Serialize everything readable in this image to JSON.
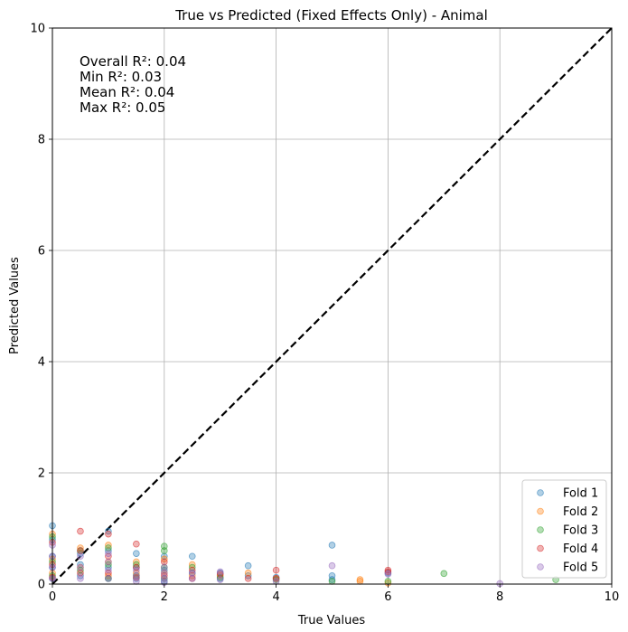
{
  "chart_data": {
    "type": "scatter",
    "title": "True vs Predicted (Fixed Effects Only) - Animal",
    "xlabel": "True Values",
    "ylabel": "Predicted Values",
    "xlim": [
      0,
      10
    ],
    "ylim": [
      0,
      10
    ],
    "xticks": [
      "0",
      "2",
      "4",
      "6",
      "8",
      "10"
    ],
    "yticks": [
      "0",
      "2",
      "4",
      "6",
      "8",
      "10"
    ],
    "grid": true,
    "legend_position": "bottom-right",
    "reference_line": {
      "x": [
        0,
        10
      ],
      "y": [
        0,
        10
      ],
      "style": "dashed",
      "color": "#000000"
    },
    "stats_lines": [
      "Overall R²: 0.04",
      "Min R²: 0.03",
      "Mean R²: 0.04",
      "Max R²: 0.05"
    ],
    "series": [
      {
        "name": "Fold 1",
        "color": "#1f77b4",
        "points": [
          [
            0,
            1.05
          ],
          [
            0,
            0.8
          ],
          [
            0,
            0.5
          ],
          [
            0,
            0.3
          ],
          [
            0,
            0.1
          ],
          [
            0.5,
            0.55
          ],
          [
            0.5,
            0.35
          ],
          [
            0.5,
            0.15
          ],
          [
            1,
            0.95
          ],
          [
            1,
            0.6
          ],
          [
            1,
            0.3
          ],
          [
            1,
            0.1
          ],
          [
            1.5,
            0.55
          ],
          [
            1.5,
            0.3
          ],
          [
            1.5,
            0.1
          ],
          [
            2,
            0.5
          ],
          [
            2,
            0.25
          ],
          [
            2,
            0.05
          ],
          [
            2.5,
            0.5
          ],
          [
            2.5,
            0.2
          ],
          [
            3,
            0.2
          ],
          [
            3,
            0.1
          ],
          [
            3.5,
            0.33
          ],
          [
            3.5,
            0.15
          ],
          [
            4,
            0.12
          ],
          [
            5,
            0.7
          ],
          [
            5,
            0.15
          ],
          [
            5,
            0.08
          ],
          [
            6,
            0.2
          ]
        ]
      },
      {
        "name": "Fold 2",
        "color": "#ff7f0e",
        "points": [
          [
            0,
            0.9
          ],
          [
            0,
            0.45
          ],
          [
            0,
            0.2
          ],
          [
            0.5,
            0.65
          ],
          [
            0.5,
            0.3
          ],
          [
            1,
            0.7
          ],
          [
            1,
            0.4
          ],
          [
            1,
            0.15
          ],
          [
            1.5,
            0.4
          ],
          [
            1.5,
            0.2
          ],
          [
            2,
            0.45
          ],
          [
            2,
            0.2
          ],
          [
            2.5,
            0.35
          ],
          [
            2.5,
            0.15
          ],
          [
            3,
            0.15
          ],
          [
            3.5,
            0.2
          ],
          [
            4,
            0.1
          ],
          [
            5.5,
            0.08
          ],
          [
            5.5,
            0.05
          ],
          [
            6,
            0.02
          ]
        ]
      },
      {
        "name": "Fold 3",
        "color": "#2ca02c",
        "points": [
          [
            0,
            0.85
          ],
          [
            0,
            0.4
          ],
          [
            0,
            0.15
          ],
          [
            0.5,
            0.6
          ],
          [
            0.5,
            0.25
          ],
          [
            1,
            0.65
          ],
          [
            1,
            0.35
          ],
          [
            1,
            0.1
          ],
          [
            1.5,
            0.35
          ],
          [
            1.5,
            0.15
          ],
          [
            2,
            0.68
          ],
          [
            2,
            0.6
          ],
          [
            2,
            0.3
          ],
          [
            2,
            0.1
          ],
          [
            2.5,
            0.3
          ],
          [
            3,
            0.12
          ],
          [
            4,
            0.08
          ],
          [
            5,
            0.05
          ],
          [
            6,
            0.05
          ],
          [
            7,
            0.19
          ],
          [
            9,
            0.08
          ]
        ]
      },
      {
        "name": "Fold 4",
        "color": "#d62728",
        "points": [
          [
            0,
            0.75
          ],
          [
            0,
            0.35
          ],
          [
            0,
            0.12
          ],
          [
            0.5,
            0.95
          ],
          [
            0.5,
            0.6
          ],
          [
            0.5,
            0.2
          ],
          [
            1,
            0.9
          ],
          [
            1,
            0.5
          ],
          [
            1,
            0.2
          ],
          [
            1.5,
            0.72
          ],
          [
            1.5,
            0.3
          ],
          [
            1.5,
            0.12
          ],
          [
            2,
            0.4
          ],
          [
            2,
            0.15
          ],
          [
            2.5,
            0.25
          ],
          [
            2.5,
            0.1
          ],
          [
            3,
            0.18
          ],
          [
            3.5,
            0.1
          ],
          [
            4,
            0.25
          ],
          [
            4,
            0.1
          ],
          [
            6,
            0.25
          ],
          [
            6,
            0.22
          ]
        ]
      },
      {
        "name": "Fold 5",
        "color": "#9467bd",
        "points": [
          [
            0,
            0.7
          ],
          [
            0,
            0.5
          ],
          [
            0,
            0.3
          ],
          [
            0,
            0.1
          ],
          [
            0.5,
            0.5
          ],
          [
            0.5,
            0.3
          ],
          [
            0.5,
            0.1
          ],
          [
            1,
            0.55
          ],
          [
            1,
            0.4
          ],
          [
            1,
            0.25
          ],
          [
            1,
            0.1
          ],
          [
            1.5,
            0.25
          ],
          [
            1.5,
            0.15
          ],
          [
            1.5,
            0.05
          ],
          [
            2,
            0.3
          ],
          [
            2,
            0.2
          ],
          [
            2,
            0.1
          ],
          [
            2,
            0.03
          ],
          [
            2.5,
            0.2
          ],
          [
            2.5,
            0.1
          ],
          [
            3,
            0.22
          ],
          [
            3,
            0.08
          ],
          [
            4,
            0.05
          ],
          [
            5,
            0.33
          ],
          [
            6,
            0.18
          ],
          [
            8,
            0.01
          ]
        ]
      }
    ]
  }
}
